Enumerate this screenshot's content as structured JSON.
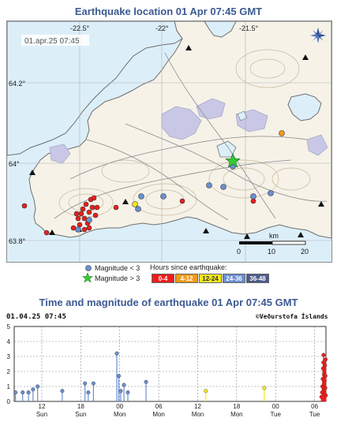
{
  "map": {
    "title": "Earthquake location   01 Apr 07:45 GMT",
    "timestamp": "01.apr.25  07:45",
    "lon_labels": [
      "-22.5°",
      "-22°",
      "-21.5°"
    ],
    "lat_labels": [
      "64.2°",
      "64°",
      "63.8°"
    ],
    "scale": {
      "unit": "km",
      "ticks": [
        "0",
        "10",
        "20"
      ]
    },
    "compass_icon": "north-arrow-icon",
    "colors": {
      "sea": "#dceff9",
      "land": "#f6f2e8",
      "glacier": "#c8c8e6",
      "lake": "#dceff9",
      "road": "#8a8a8a",
      "contour": "#c9b79a"
    }
  },
  "legend": {
    "mag_small_label": "Magnitude < 3",
    "mag_large_label": "Magnitude > 3",
    "hours_title": "Hours since earthquake:",
    "hour_bins": [
      {
        "label": "0-4",
        "color": "#ee1c1c",
        "text_color": "#ffffff"
      },
      {
        "label": "4-12",
        "color": "#f29a17",
        "text_color": "#ffffff"
      },
      {
        "label": "12-24",
        "color": "#f6e81a",
        "text_color": "#333333"
      },
      {
        "label": "24-36",
        "color": "#6a8fd0",
        "text_color": "#ffffff"
      },
      {
        "label": "36-48",
        "color": "#4a5a8a",
        "text_color": "#ffffff"
      }
    ]
  },
  "chart_data": {
    "type": "scatter",
    "title": "Time and magnitude of earthquake   01 Apr 07:45 GMT",
    "timestamp": "01.04.25 07:45",
    "credit": "©Veðurstofa Íslands",
    "xlabel": "",
    "ylabel": "",
    "ylim": [
      0,
      5
    ],
    "y_ticks": [
      0,
      1,
      2,
      3,
      4,
      5
    ],
    "xlim": [
      0,
      48
    ],
    "x_ticks": [
      {
        "x": 4.25,
        "hour": "12",
        "day": "Sun"
      },
      {
        "x": 10.25,
        "hour": "18",
        "day": "Sun"
      },
      {
        "x": 16.25,
        "hour": "00",
        "day": "Mon"
      },
      {
        "x": 22.25,
        "hour": "06",
        "day": "Mon"
      },
      {
        "x": 28.25,
        "hour": "12",
        "day": "Mon"
      },
      {
        "x": 34.25,
        "hour": "18",
        "day": "Mon"
      },
      {
        "x": 40.25,
        "hour": "00",
        "day": "Tue"
      },
      {
        "x": 46.25,
        "hour": "06",
        "day": "Tue"
      }
    ],
    "grid": true,
    "series": [
      {
        "color": "#6a8fd0",
        "points": [
          [
            0.2,
            0.6
          ],
          [
            1.3,
            0.6
          ],
          [
            2.2,
            0.6
          ],
          [
            2.9,
            0.8
          ],
          [
            3.6,
            1.0
          ],
          [
            7.4,
            0.7
          ],
          [
            10.9,
            1.2
          ],
          [
            11.4,
            0.6
          ],
          [
            12.2,
            1.2
          ],
          [
            15.8,
            3.2
          ],
          [
            16.1,
            1.7
          ],
          [
            16.4,
            0.7
          ],
          [
            16.9,
            1.1
          ],
          [
            17.5,
            0.6
          ],
          [
            20.3,
            1.3
          ]
        ]
      },
      {
        "color": "#f6e81a",
        "points": [
          [
            29.5,
            0.7
          ],
          [
            38.5,
            0.9
          ]
        ]
      },
      {
        "color": "#ee1c1c",
        "points": [
          [
            47.3,
            0.3
          ],
          [
            47.4,
            0.6
          ],
          [
            47.45,
            1.0
          ],
          [
            47.5,
            1.5
          ],
          [
            47.55,
            2.2
          ],
          [
            47.6,
            2.6
          ],
          [
            47.62,
            3.1
          ],
          [
            47.65,
            0.8
          ],
          [
            47.7,
            1.8
          ],
          [
            47.72,
            1.2
          ],
          [
            47.75,
            2.0
          ],
          [
            47.78,
            0.5
          ],
          [
            47.8,
            1.4
          ],
          [
            47.85,
            2.4
          ],
          [
            47.9,
            0.9
          ],
          [
            47.92,
            1.7
          ],
          [
            47.95,
            2.8
          ],
          [
            47.98,
            0.4
          ]
        ]
      }
    ]
  }
}
